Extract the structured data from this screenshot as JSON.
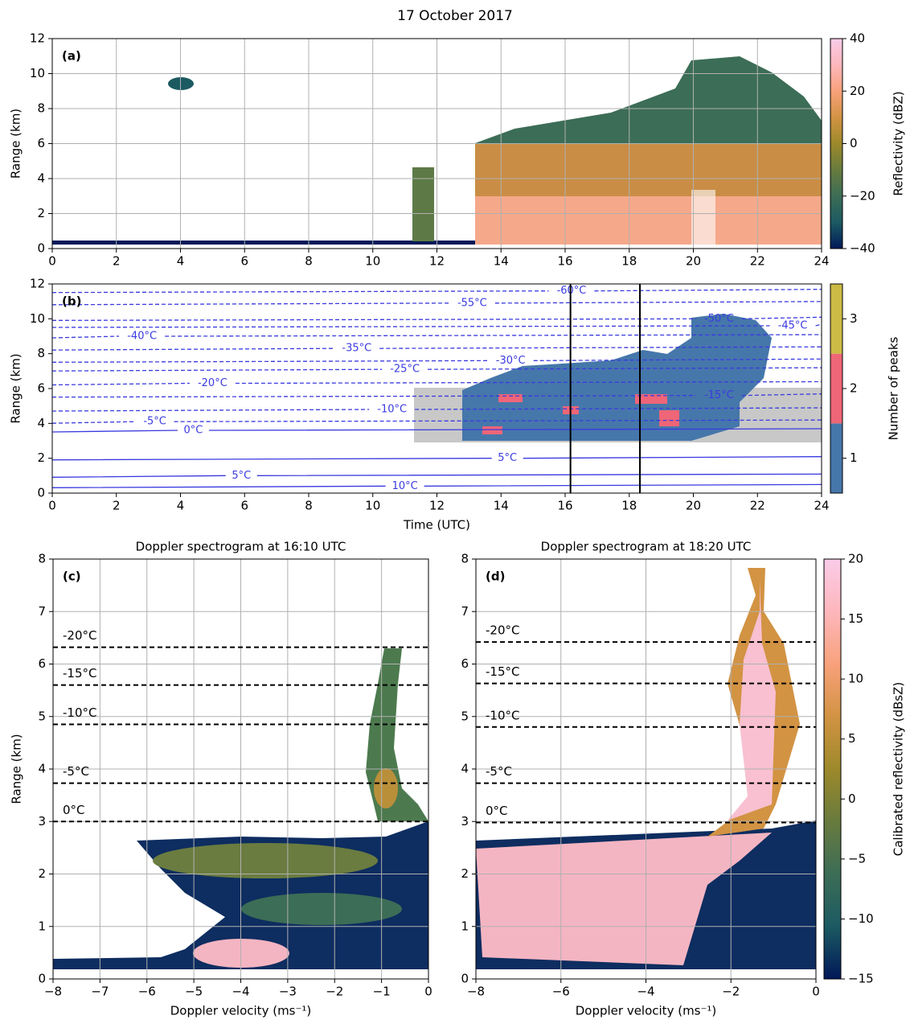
{
  "title": "17 October 2017",
  "chart_data": [
    {
      "type": "heatmap",
      "panel_label": "(a)",
      "ylabel": "Range (km)",
      "xlim": [
        0,
        24
      ],
      "xticks": [
        0,
        2,
        4,
        6,
        8,
        10,
        12,
        14,
        16,
        18,
        20,
        22,
        24
      ],
      "ylim": [
        0,
        12
      ],
      "yticks": [
        0,
        2,
        4,
        6,
        8,
        10,
        12
      ],
      "grid": true,
      "colorbar": {
        "label": "Reflectivity (dBZ)",
        "lim": [
          -40,
          40
        ],
        "ticks": [
          {
            "value": -40,
            "label": "−40"
          },
          {
            "value": -20,
            "label": "−20"
          },
          0,
          20,
          40
        ],
        "colors": [
          "#011959",
          "#1c5a62",
          "#3c6d56",
          "#687b3e",
          "#9d892b",
          "#d29343",
          "#f8a17b",
          "#fdb7bc",
          "#facce9"
        ]
      }
    },
    {
      "type": "heatmap",
      "panel_label": "(b)",
      "xlabel": "Time (UTC)",
      "ylabel": "Range (km)",
      "xlim": [
        0,
        24
      ],
      "xticks": [
        0,
        2,
        4,
        6,
        8,
        10,
        12,
        14,
        16,
        18,
        20,
        22,
        24
      ],
      "ylim": [
        0,
        12
      ],
      "yticks": [
        0,
        2,
        4,
        6,
        8,
        10,
        12
      ],
      "grid": false,
      "vlines": [
        16.1667,
        18.3333
      ],
      "contour_labels": [
        "-60°C",
        "-55°C",
        "-50°C",
        "-45°C",
        "-40°C",
        "-35°C",
        "-30°C",
        "-25°C",
        "-20°C",
        "-15°C",
        "-10°C",
        "-5°C",
        "0°C",
        "5°C",
        "5°C",
        "10°C"
      ],
      "colorbar": {
        "label": "Number of peaks",
        "lim": [
          0.5,
          3.5
        ],
        "ticks": [
          1,
          2,
          3
        ],
        "discrete": true,
        "colors": [
          "#4677aa",
          "#ee6677",
          "#ccbb44"
        ]
      }
    },
    {
      "type": "spectrogram",
      "panel_label": "(c)",
      "title": "Doppler spectrogram at 16:10 UTC",
      "xlabel": "Doppler velocity (ms⁻¹)",
      "ylabel": "Range (km)",
      "xlim": [
        -8,
        0
      ],
      "xticks": [
        {
          "value": -8,
          "label": "−8"
        },
        {
          "value": -7,
          "label": "−7"
        },
        {
          "value": -6,
          "label": "−6"
        },
        {
          "value": -5,
          "label": "−5"
        },
        {
          "value": -4,
          "label": "−4"
        },
        {
          "value": -3,
          "label": "−3"
        },
        {
          "value": -2,
          "label": "−2"
        },
        {
          "value": -1,
          "label": "−1"
        },
        0
      ],
      "ylim": [
        0,
        8
      ],
      "yticks": [
        0,
        1,
        2,
        3,
        4,
        5,
        6,
        7,
        8
      ],
      "grid": true,
      "isotherms": [
        {
          "label": "-20°C",
          "value": 6.32
        },
        {
          "label": "-15°C",
          "value": 5.6
        },
        {
          "label": "-10°C",
          "value": 4.85
        },
        {
          "label": "-5°C",
          "value": 3.73
        },
        {
          "label": "0°C",
          "value": 3.0
        }
      ]
    },
    {
      "type": "spectrogram",
      "panel_label": "(d)",
      "title": "Doppler spectrogram at 18:20 UTC",
      "xlabel": "Doppler velocity (ms⁻¹)",
      "xlim": [
        -8,
        0
      ],
      "xticks": [
        {
          "value": -8,
          "label": "−8"
        },
        {
          "value": -6,
          "label": "−6"
        },
        {
          "value": -4,
          "label": "−4"
        },
        {
          "value": -2,
          "label": "−2"
        },
        0
      ],
      "ylim": [
        0,
        8
      ],
      "yticks": [
        0,
        1,
        2,
        3,
        4,
        5,
        6,
        7,
        8
      ],
      "grid": true,
      "isotherms": [
        {
          "label": "-20°C",
          "value": 6.42
        },
        {
          "label": "-15°C",
          "value": 5.63
        },
        {
          "label": "-10°C",
          "value": 4.8
        },
        {
          "label": "-5°C",
          "value": 3.73
        },
        {
          "label": "0°C",
          "value": 2.98
        }
      ],
      "colorbar": {
        "label": "Calibrated reflectivity (dBsZ)",
        "lim": [
          -15,
          20
        ],
        "ticks": [
          {
            "value": -15,
            "label": "−15"
          },
          {
            "value": -10,
            "label": "−10"
          },
          {
            "value": -5,
            "label": "−5"
          },
          0,
          5,
          10,
          15,
          20
        ],
        "colors": [
          "#011959",
          "#1c5a62",
          "#3c6d56",
          "#687b3e",
          "#9d892b",
          "#d29343",
          "#f8a17b",
          "#fdb7bc",
          "#facce9"
        ]
      }
    }
  ]
}
